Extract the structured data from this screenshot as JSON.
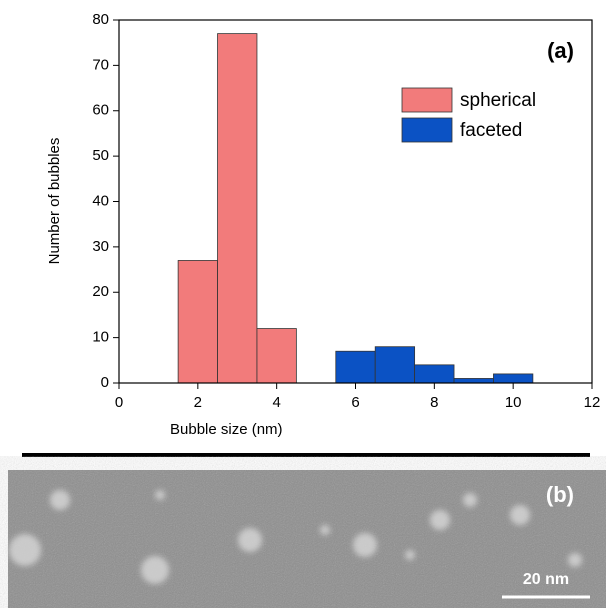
{
  "chart_data": {
    "type": "histogram",
    "panel_label": "(a)",
    "x_label": "Bubble size (nm)",
    "y_label": "Number of bubbles",
    "series": [
      {
        "name": "spherical",
        "color": "#f27b7b",
        "bins": [
          1.5,
          2.5,
          3.5,
          4.5
        ],
        "values": [
          27,
          77,
          12
        ]
      },
      {
        "name": "faceted",
        "color": "#0b52c4",
        "bins": [
          5.5,
          6.5,
          7.5,
          8.5,
          9.5,
          10.5
        ],
        "values": [
          7,
          8,
          4,
          1,
          2
        ]
      }
    ],
    "xlim": [
      0,
      12
    ],
    "xticks": [
      0,
      2,
      4,
      6,
      8,
      10,
      12
    ],
    "ylim": [
      0,
      80
    ],
    "yticks": [
      0,
      10,
      20,
      30,
      40,
      50,
      60,
      70,
      80
    ],
    "legend": "upper right"
  },
  "image": {
    "panel_label": "(b)",
    "scale_bar_label": "20 nm"
  }
}
